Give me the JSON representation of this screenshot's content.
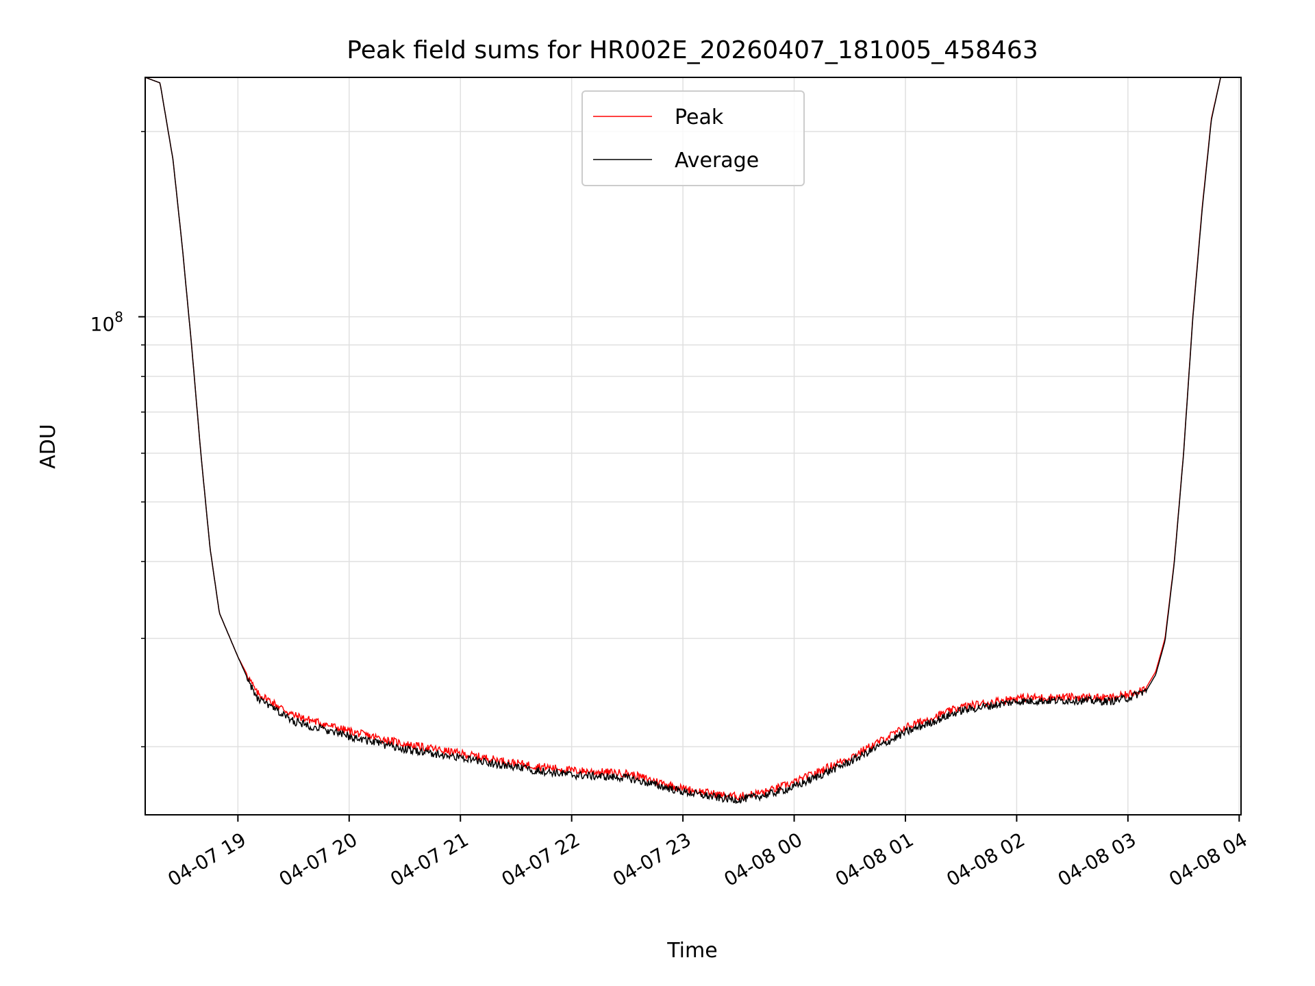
{
  "chart_data": {
    "type": "line",
    "title": "Peak field sums for HR002E_20260407_181005_458463",
    "xlabel": "Time",
    "ylabel": "ADU",
    "yscale": "log",
    "ylim": [
      15500000,
      245000000
    ],
    "xlim": [
      "2026-04-07 18:10",
      "2026-04-08 04:01"
    ],
    "x_tick_labels": [
      "04-07 19",
      "04-07 20",
      "04-07 21",
      "04-07 22",
      "04-07 23",
      "04-08 00",
      "04-08 01",
      "04-08 02",
      "04-08 03",
      "04-08 04"
    ],
    "y_tick_label": {
      "base": "10",
      "exponent": "8"
    },
    "grid": true,
    "legend": {
      "position": "upper center",
      "entries": [
        "Peak",
        "Average"
      ]
    },
    "x": [
      "2026-04-07 18:10",
      "2026-04-07 18:18",
      "2026-04-07 18:25",
      "2026-04-07 18:30",
      "2026-04-07 18:35",
      "2026-04-07 18:40",
      "2026-04-07 18:45",
      "2026-04-07 18:50",
      "2026-04-07 19:00",
      "2026-04-07 19:10",
      "2026-04-07 19:30",
      "2026-04-07 20:00",
      "2026-04-07 20:30",
      "2026-04-07 21:00",
      "2026-04-07 21:30",
      "2026-04-07 22:00",
      "2026-04-07 22:30",
      "2026-04-07 23:00",
      "2026-04-07 23:20",
      "2026-04-07 23:30",
      "2026-04-07 23:45",
      "2026-04-08 00:00",
      "2026-04-08 00:30",
      "2026-04-08 01:00",
      "2026-04-08 01:30",
      "2026-04-08 02:00",
      "2026-04-08 02:30",
      "2026-04-08 02:50",
      "2026-04-08 03:00",
      "2026-04-08 03:10",
      "2026-04-08 03:15",
      "2026-04-08 03:20",
      "2026-04-08 03:25",
      "2026-04-08 03:30",
      "2026-04-08 03:35",
      "2026-04-08 03:40",
      "2026-04-08 03:45",
      "2026-04-08 03:50"
    ],
    "series": [
      {
        "name": "Peak",
        "color": "#ff0000",
        "values": [
          245000000,
          240000000,
          180000000,
          130000000,
          90000000,
          60000000,
          42000000,
          33000000,
          28000000,
          24500000,
          22500000,
          21200000,
          20200000,
          19500000,
          18800000,
          18300000,
          18100000,
          17100000,
          16700000,
          16600000,
          16900000,
          17500000,
          19200000,
          21500000,
          23200000,
          24000000,
          24100000,
          24000000,
          24300000,
          25000000,
          26500000,
          30000000,
          40000000,
          60000000,
          100000000,
          150000000,
          210000000,
          245000000
        ]
      },
      {
        "name": "Average",
        "color": "#000000",
        "values": [
          245000000,
          240000000,
          180000000,
          130000000,
          90000000,
          60000000,
          42000000,
          33000000,
          28000000,
          24000000,
          22000000,
          20800000,
          19800000,
          19200000,
          18500000,
          18000000,
          17800000,
          16900000,
          16500000,
          16400000,
          16700000,
          17200000,
          18900000,
          21100000,
          22900000,
          23700000,
          23800000,
          23700000,
          24000000,
          24700000,
          26200000,
          29700000,
          39800000,
          59800000,
          99500000,
          149000000,
          209000000,
          245000000
        ]
      }
    ]
  }
}
